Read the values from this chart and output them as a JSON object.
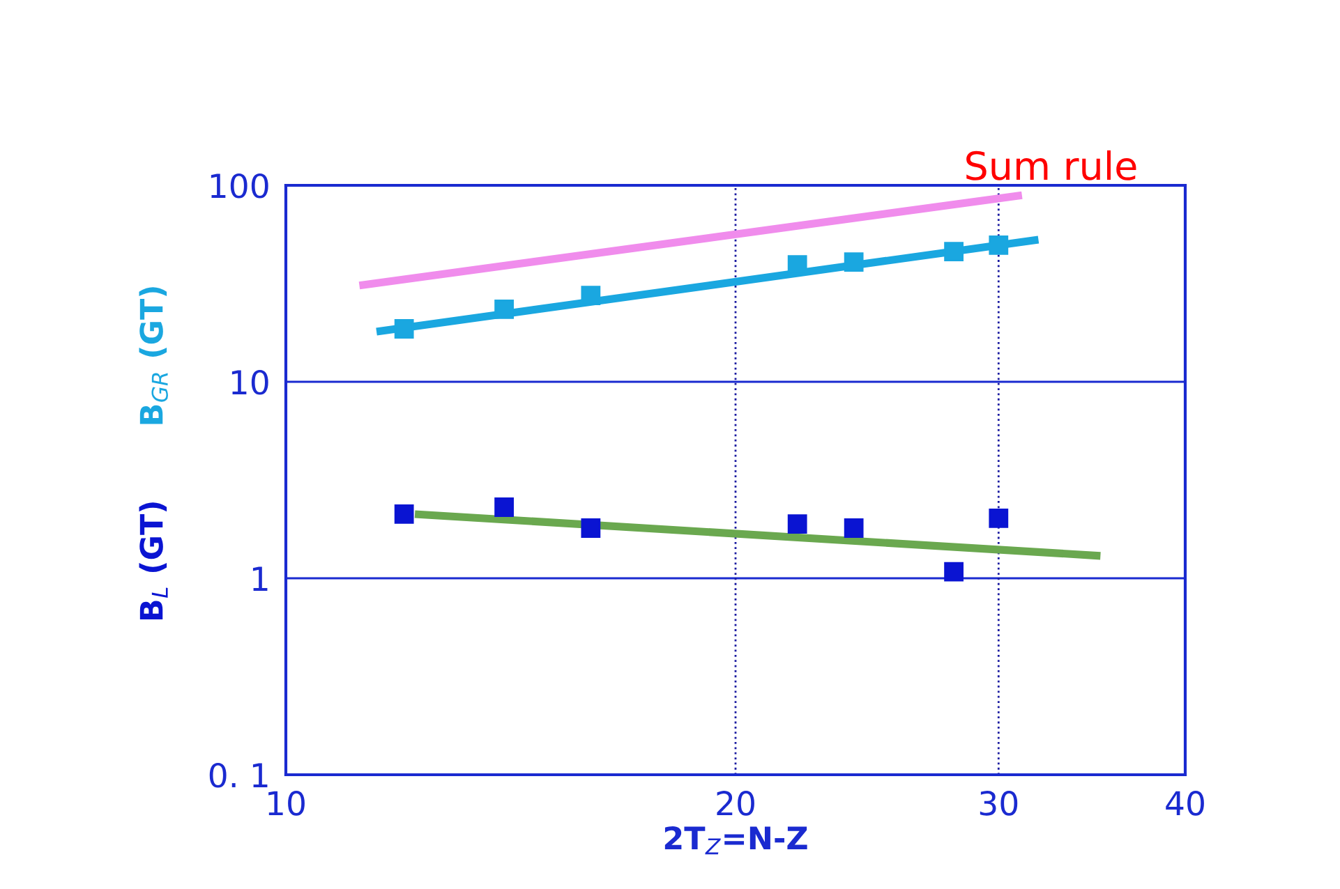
{
  "chart_data": {
    "type": "scatter",
    "xlabel": "2T$_{Z}$=N-Z",
    "log": "xy",
    "grid": "y",
    "marker": "square",
    "xlim": [
      10,
      40
    ],
    "xticks": [
      10,
      20,
      30,
      40
    ],
    "ylim": [
      0.1,
      100
    ],
    "yticks": [
      {
        "value": 0.1,
        "label": "0. 1"
      },
      1,
      10,
      100
    ],
    "series": [
      {
        "name": "B$_{GR}$ (GT)",
        "color": "#1aa7e0",
        "x": [
          12,
          14,
          16,
          22,
          24,
          28,
          30
        ],
        "values": [
          18.6,
          23.4,
          27.5,
          39.4,
          40.7,
          46,
          49.6
        ]
      },
      {
        "name": "B$_{L}$ (GT)",
        "color": "#0a14d2",
        "x": [
          12,
          14,
          16,
          22,
          24,
          28,
          30
        ],
        "values": [
          2.12,
          2.3,
          1.8,
          1.89,
          1.8,
          1.08,
          2.02
        ]
      },
      {
        "type": "line",
        "marker": "none",
        "color": "#1aa7e0",
        "x": [
          11.5,
          31.9
        ],
        "values": [
          18,
          52.9
        ]
      },
      {
        "type": "line",
        "marker": "none",
        "color": "#f08cec",
        "x": [
          11.2,
          31.1
        ],
        "values": [
          30.9,
          89
        ]
      },
      {
        "type": "line",
        "marker": "none",
        "color": "#6aa84f",
        "x": [
          12.2,
          35.1
        ],
        "values": [
          2.12,
          1.3
        ]
      }
    ],
    "ref_lines": [
      {
        "axis": "x",
        "value": 20,
        "color": "#1a1aa0",
        "line_style": "dotted"
      },
      {
        "axis": "x",
        "value": 30,
        "color": "#1a1aa0",
        "line_style": "dotted"
      }
    ],
    "annotations": [
      {
        "text": "Sum rule",
        "x": 31.1,
        "y": 89
      }
    ]
  }
}
